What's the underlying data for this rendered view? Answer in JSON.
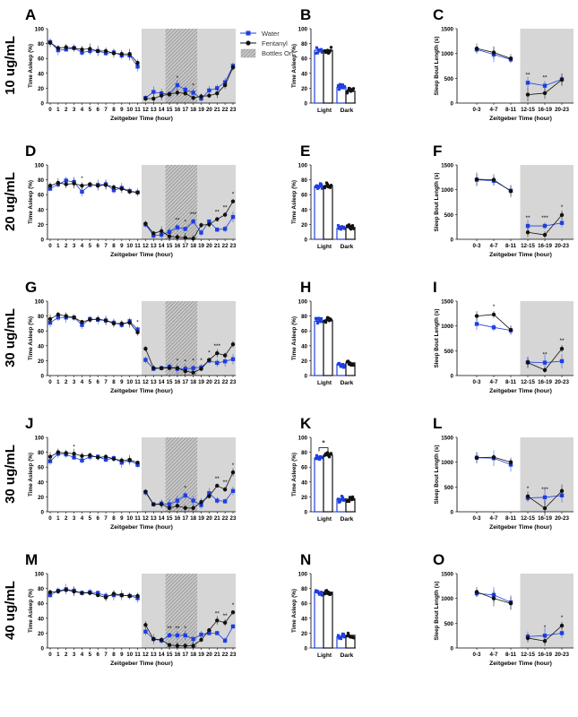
{
  "figure": {
    "legend": {
      "water": "Water",
      "fentanyl": "Fentanyl",
      "bottles": "Bottles On"
    },
    "colors": {
      "water": "#1f3fe0",
      "fentanyl": "#111111",
      "shade": "#d6d6d6",
      "hatch": "#9a9a9a"
    },
    "shared_axis": {
      "hourly_ylabel": "Time Asleep (%)",
      "hourly_xlabel": "Zeitgeber Time (hour)",
      "hourly_ticks": [
        "0",
        "1",
        "2",
        "3",
        "4",
        "5",
        "6",
        "7",
        "8",
        "9",
        "10",
        "11",
        "12",
        "13",
        "14",
        "15",
        "16",
        "17",
        "18",
        "19",
        "20",
        "21",
        "22",
        "23"
      ],
      "hourly_yticks": [
        "0",
        "20",
        "40",
        "60",
        "80",
        "100"
      ],
      "bar_ylabel": "Time Asleep (%)",
      "bar_categories": [
        "Light",
        "Dark"
      ],
      "bout_ylabel": "Sleep Bout Length (s)",
      "bout_xlabel": "Zeitgeber Time (hour)",
      "bout_categories": [
        "0-3",
        "4-7",
        "8-11",
        "12-15",
        "16-19",
        "20-23"
      ],
      "bout_yticks": [
        "0",
        "500",
        "1000",
        "1500"
      ]
    },
    "rows": [
      {
        "dose": "10 ug/mL",
        "panel_labels": [
          "A",
          "B",
          "C"
        ]
      },
      {
        "dose": "20 ug/mL",
        "panel_labels": [
          "D",
          "E",
          "F"
        ]
      },
      {
        "dose": "30 ug/mL",
        "panel_labels": [
          "G",
          "H",
          "I"
        ]
      },
      {
        "dose": "30 ug/mL",
        "panel_labels": [
          "J",
          "K",
          "L"
        ]
      },
      {
        "dose": "40 ug/mL",
        "panel_labels": [
          "M",
          "N",
          "O"
        ]
      }
    ]
  },
  "chart_data": [
    {
      "panel": "A",
      "type": "line",
      "xlabel": "Zeitgeber Time (hour)",
      "ylabel": "Time Asleep (%)",
      "ylim": [
        0,
        100
      ],
      "x": [
        0,
        1,
        2,
        3,
        4,
        5,
        6,
        7,
        8,
        9,
        10,
        11,
        12,
        13,
        14,
        15,
        16,
        17,
        18,
        19,
        20,
        21,
        22,
        23
      ],
      "series": [
        {
          "name": "Water",
          "values": [
            82,
            71,
            72,
            74,
            68,
            70,
            70,
            67,
            68,
            64,
            64,
            49,
            7,
            15,
            13,
            12,
            24,
            18,
            14,
            6,
            17,
            20,
            28,
            50
          ]
        },
        {
          "name": "Fentanyl",
          "values": [
            81,
            74,
            75,
            74,
            72,
            73,
            70,
            70,
            67,
            66,
            66,
            54,
            6,
            6,
            10,
            12,
            14,
            13,
            7,
            9,
            10,
            13,
            24,
            48
          ]
        }
      ],
      "annotations": [
        {
          "x": 16,
          "text": "*"
        },
        {
          "x": 18,
          "text": "*"
        }
      ]
    },
    {
      "panel": "B",
      "type": "bar",
      "ylabel": "Time Asleep (%)",
      "ylim": [
        0,
        100
      ],
      "categories": [
        "Light",
        "Dark"
      ],
      "series": [
        {
          "name": "Water",
          "values": [
            71,
            21
          ]
        },
        {
          "name": "Fentanyl",
          "values": [
            71,
            16
          ]
        }
      ]
    },
    {
      "panel": "C",
      "type": "line",
      "xlabel": "Zeitgeber Time (hour)",
      "ylabel": "Sleep Bout Length (s)",
      "ylim": [
        0,
        1500
      ],
      "categories": [
        "0-3",
        "4-7",
        "8-11",
        "12-15",
        "16-19",
        "20-23"
      ],
      "series": [
        {
          "name": "Water",
          "values": [
            1080,
            980,
            880,
            410,
            350,
            480
          ]
        },
        {
          "name": "Fentanyl",
          "values": [
            1100,
            1020,
            900,
            170,
            200,
            470
          ]
        }
      ],
      "annotations": [
        {
          "x": "12-15",
          "text": "**"
        },
        {
          "x": "16-19",
          "text": "**"
        }
      ]
    },
    {
      "panel": "D",
      "type": "line",
      "xlabel": "Zeitgeber Time (hour)",
      "ylabel": "Time Asleep (%)",
      "ylim": [
        0,
        100
      ],
      "x": [
        0,
        1,
        2,
        3,
        4,
        5,
        6,
        7,
        8,
        9,
        10,
        11,
        12,
        13,
        14,
        15,
        16,
        17,
        18,
        19,
        20,
        21,
        22,
        23
      ],
      "series": [
        {
          "name": "Water",
          "values": [
            68,
            74,
            79,
            77,
            64,
            73,
            73,
            74,
            66,
            69,
            65,
            63,
            20,
            5,
            6,
            10,
            16,
            14,
            24,
            9,
            24,
            13,
            14,
            30
          ]
        },
        {
          "name": "Fentanyl",
          "values": [
            72,
            76,
            74,
            75,
            72,
            74,
            72,
            73,
            70,
            68,
            64,
            63,
            21,
            8,
            11,
            4,
            3,
            2,
            1,
            19,
            20,
            27,
            33,
            51
          ]
        }
      ],
      "annotations": [
        {
          "x": 4,
          "text": "*"
        },
        {
          "x": 16,
          "text": "**"
        },
        {
          "x": 17,
          "text": "*"
        },
        {
          "x": 18,
          "text": "***"
        },
        {
          "x": 21,
          "text": "**"
        },
        {
          "x": 22,
          "text": "**"
        },
        {
          "x": 23,
          "text": "*"
        }
      ]
    },
    {
      "panel": "E",
      "type": "bar",
      "ylabel": "Time Asleep (%)",
      "ylim": [
        0,
        100
      ],
      "categories": [
        "Light",
        "Dark"
      ],
      "series": [
        {
          "name": "Water",
          "values": [
            71,
            15
          ]
        },
        {
          "name": "Fentanyl",
          "values": [
            72,
            16
          ]
        }
      ]
    },
    {
      "panel": "F",
      "type": "line",
      "xlabel": "Zeitgeber Time (hour)",
      "ylabel": "Sleep Bout Length (s)",
      "ylim": [
        0,
        1500
      ],
      "categories": [
        "0-3",
        "4-7",
        "8-11",
        "12-15",
        "16-19",
        "20-23"
      ],
      "series": [
        {
          "name": "Water",
          "values": [
            1200,
            1180,
            980,
            270,
            270,
            330
          ]
        },
        {
          "name": "Fentanyl",
          "values": [
            1210,
            1200,
            970,
            140,
            90,
            490
          ]
        }
      ],
      "annotations": [
        {
          "x": "12-15",
          "text": "**"
        },
        {
          "x": "16-19",
          "text": "***"
        },
        {
          "x": "20-23",
          "text": "*"
        }
      ]
    },
    {
      "panel": "G",
      "type": "line",
      "xlabel": "Zeitgeber Time (hour)",
      "ylabel": "Time Asleep (%)",
      "ylim": [
        0,
        100
      ],
      "x": [
        0,
        1,
        2,
        3,
        4,
        5,
        6,
        7,
        8,
        9,
        10,
        11,
        12,
        13,
        14,
        15,
        16,
        17,
        18,
        19,
        20,
        21,
        22,
        23
      ],
      "series": [
        {
          "name": "Water",
          "values": [
            71,
            78,
            78,
            78,
            68,
            76,
            75,
            74,
            71,
            68,
            73,
            62,
            21,
            9,
            10,
            12,
            9,
            9,
            10,
            11,
            20,
            17,
            19,
            22
          ]
        },
        {
          "name": "Fentanyl",
          "values": [
            76,
            82,
            80,
            78,
            72,
            75,
            76,
            74,
            70,
            70,
            71,
            58,
            36,
            10,
            10,
            10,
            10,
            6,
            4,
            9,
            21,
            30,
            27,
            42
          ]
        }
      ],
      "annotations": [
        {
          "x": 11,
          "text": "*"
        },
        {
          "x": 16,
          "text": "*"
        },
        {
          "x": 17,
          "text": "*"
        },
        {
          "x": 18,
          "text": "*"
        },
        {
          "x": 19,
          "text": "*"
        },
        {
          "x": 20,
          "text": "*"
        },
        {
          "x": 21,
          "text": "***"
        }
      ]
    },
    {
      "panel": "H",
      "type": "bar",
      "ylabel": "Time Asleep (%)",
      "ylim": [
        0,
        100
      ],
      "categories": [
        "Light",
        "Dark"
      ],
      "series": [
        {
          "name": "Water",
          "values": [
            73,
            15
          ]
        },
        {
          "name": "Fentanyl",
          "values": [
            74,
            17
          ]
        }
      ]
    },
    {
      "panel": "I",
      "type": "line",
      "xlabel": "Zeitgeber Time (hour)",
      "ylabel": "Sleep Bout Length (s)",
      "ylim": [
        0,
        1500
      ],
      "categories": [
        "0-3",
        "4-7",
        "8-11",
        "12-15",
        "16-19",
        "20-23"
      ],
      "series": [
        {
          "name": "Water",
          "values": [
            1040,
            970,
            910,
            270,
            260,
            290
          ]
        },
        {
          "name": "Fentanyl",
          "values": [
            1200,
            1230,
            920,
            260,
            110,
            540
          ]
        }
      ],
      "annotations": [
        {
          "x": "4-7",
          "text": "*"
        },
        {
          "x": "16-19",
          "text": "**"
        },
        {
          "x": "20-23",
          "text": "**"
        }
      ]
    },
    {
      "panel": "J",
      "type": "line",
      "xlabel": "Zeitgeber Time (hour)",
      "ylabel": "Time Asleep (%)",
      "ylim": [
        0,
        100
      ],
      "x": [
        0,
        1,
        2,
        3,
        4,
        5,
        6,
        7,
        8,
        9,
        10,
        11,
        12,
        13,
        14,
        15,
        16,
        17,
        18,
        19,
        20,
        21,
        22,
        23
      ],
      "series": [
        {
          "name": "Water",
          "values": [
            68,
            78,
            77,
            73,
            69,
            74,
            74,
            70,
            72,
            66,
            69,
            63,
            26,
            10,
            11,
            10,
            15,
            22,
            15,
            9,
            25,
            15,
            14,
            28
          ]
        },
        {
          "name": "Fentanyl",
          "values": [
            74,
            80,
            79,
            78,
            75,
            76,
            73,
            74,
            71,
            69,
            70,
            66,
            27,
            10,
            10,
            5,
            8,
            5,
            5,
            13,
            21,
            35,
            30,
            53
          ]
        }
      ],
      "annotations": [
        {
          "x": 3,
          "text": "*"
        },
        {
          "x": 17,
          "text": "*"
        },
        {
          "x": 21,
          "text": "**"
        },
        {
          "x": 22,
          "text": "**"
        },
        {
          "x": 23,
          "text": "*"
        }
      ]
    },
    {
      "panel": "K",
      "type": "bar",
      "ylabel": "Time Asleep (%)",
      "ylim": [
        0,
        100
      ],
      "categories": [
        "Light",
        "Dark"
      ],
      "series": [
        {
          "name": "Water",
          "values": [
            72,
            17
          ]
        },
        {
          "name": "Fentanyl",
          "values": [
            76,
            17
          ]
        }
      ],
      "annotations": [
        {
          "x": "Light",
          "text": "*"
        }
      ]
    },
    {
      "panel": "L",
      "type": "line",
      "xlabel": "Zeitgeber Time (hour)",
      "ylabel": "Sleep Bout Length (s)",
      "ylim": [
        0,
        1500
      ],
      "categories": [
        "0-3",
        "4-7",
        "8-11",
        "12-15",
        "16-19",
        "20-23"
      ],
      "series": [
        {
          "name": "Water",
          "values": [
            1090,
            1080,
            950,
            280,
            290,
            330
          ]
        },
        {
          "name": "Fentanyl",
          "values": [
            1090,
            1100,
            1000,
            310,
            70,
            420
          ]
        }
      ],
      "annotations": [
        {
          "x": "12-15",
          "text": "*"
        },
        {
          "x": "16-19",
          "text": "***"
        }
      ]
    },
    {
      "panel": "M",
      "type": "line",
      "xlabel": "Zeitgeber Time (hour)",
      "ylabel": "Time Asleep (%)",
      "ylim": [
        0,
        100
      ],
      "x": [
        0,
        1,
        2,
        3,
        4,
        5,
        6,
        7,
        8,
        9,
        10,
        11,
        12,
        13,
        14,
        15,
        16,
        17,
        18,
        19,
        20,
        21,
        22,
        23
      ],
      "series": [
        {
          "name": "Water",
          "values": [
            71,
            77,
            79,
            77,
            74,
            75,
            74,
            70,
            71,
            71,
            70,
            67,
            22,
            12,
            10,
            17,
            17,
            17,
            12,
            18,
            20,
            20,
            10,
            29
          ]
        },
        {
          "name": "Fentanyl",
          "values": [
            75,
            76,
            78,
            76,
            74,
            74,
            71,
            68,
            73,
            71,
            70,
            70,
            31,
            12,
            11,
            4,
            3,
            3,
            3,
            11,
            24,
            37,
            34,
            48
          ]
        }
      ],
      "annotations": [
        {
          "x": 15,
          "text": "**"
        },
        {
          "x": 16,
          "text": "**"
        },
        {
          "x": 17,
          "text": "*"
        },
        {
          "x": 21,
          "text": "**"
        },
        {
          "x": 22,
          "text": "**"
        },
        {
          "x": 23,
          "text": "*"
        }
      ]
    },
    {
      "panel": "N",
      "type": "bar",
      "ylabel": "Time Asleep (%)",
      "ylim": [
        0,
        100
      ],
      "categories": [
        "Light",
        "Dark"
      ],
      "series": [
        {
          "name": "Water",
          "values": [
            75,
            15
          ]
        },
        {
          "name": "Fentanyl",
          "values": [
            75,
            17
          ]
        }
      ]
    },
    {
      "panel": "O",
      "type": "line",
      "xlabel": "Zeitgeber Time (hour)",
      "ylabel": "Sleep Bout Length (s)",
      "ylim": [
        0,
        1500
      ],
      "categories": [
        "0-3",
        "4-7",
        "8-11",
        "12-15",
        "16-19",
        "20-23"
      ],
      "series": [
        {
          "name": "Water",
          "values": [
            1100,
            1070,
            920,
            230,
            250,
            300
          ]
        },
        {
          "name": "Fentanyl",
          "values": [
            1130,
            1000,
            900,
            200,
            140,
            450
          ]
        }
      ],
      "annotations": [
        {
          "x": "16-19",
          "text": "*"
        },
        {
          "x": "20-23",
          "text": "*"
        }
      ]
    }
  ]
}
